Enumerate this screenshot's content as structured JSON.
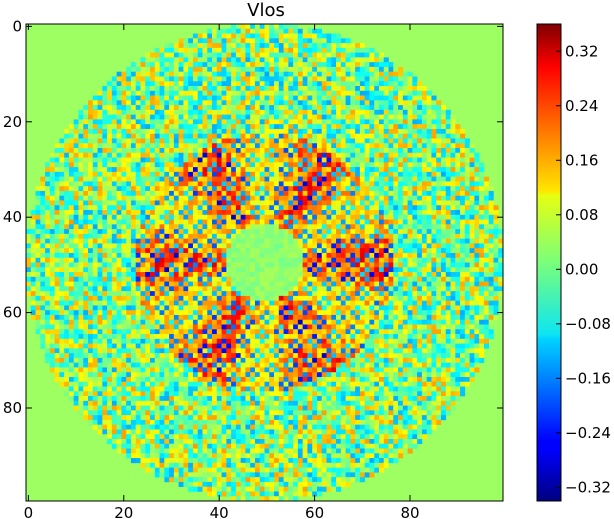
{
  "chart_data": {
    "type": "heatmap",
    "title": "Vlos",
    "xlabel": "",
    "ylabel": "",
    "grid_size": 100,
    "xlim": [
      0,
      99
    ],
    "ylim": [
      99,
      0
    ],
    "x_ticks": [
      0,
      20,
      40,
      60,
      80
    ],
    "y_ticks": [
      0,
      20,
      40,
      60,
      80
    ],
    "colormap": "jet",
    "vmin": -0.34,
    "vmax": 0.36,
    "background_value": 0.03,
    "disk": {
      "center": [
        49.5,
        49.5
      ],
      "radius": 50
    },
    "inner_zone": {
      "center": [
        49.5,
        49.5
      ],
      "radius": 8,
      "value": 0.02
    },
    "star_ring": {
      "inner_radius": 12,
      "outer_radius": 27,
      "arms": 6,
      "amplitude": 0.3
    },
    "outer_ring": {
      "inner_radius": 27,
      "outer_radius": 50,
      "amplitude": 0.15
    },
    "colorbar": {
      "ticks": [
        0.32,
        0.24,
        0.16,
        0.08,
        0.0,
        -0.08,
        -0.16,
        -0.24,
        -0.32
      ],
      "tick_labels": [
        "0.32",
        "0.24",
        "0.16",
        "0.08",
        "0.00",
        "−0.08",
        "−0.16",
        "−0.24",
        "−0.32"
      ]
    }
  }
}
